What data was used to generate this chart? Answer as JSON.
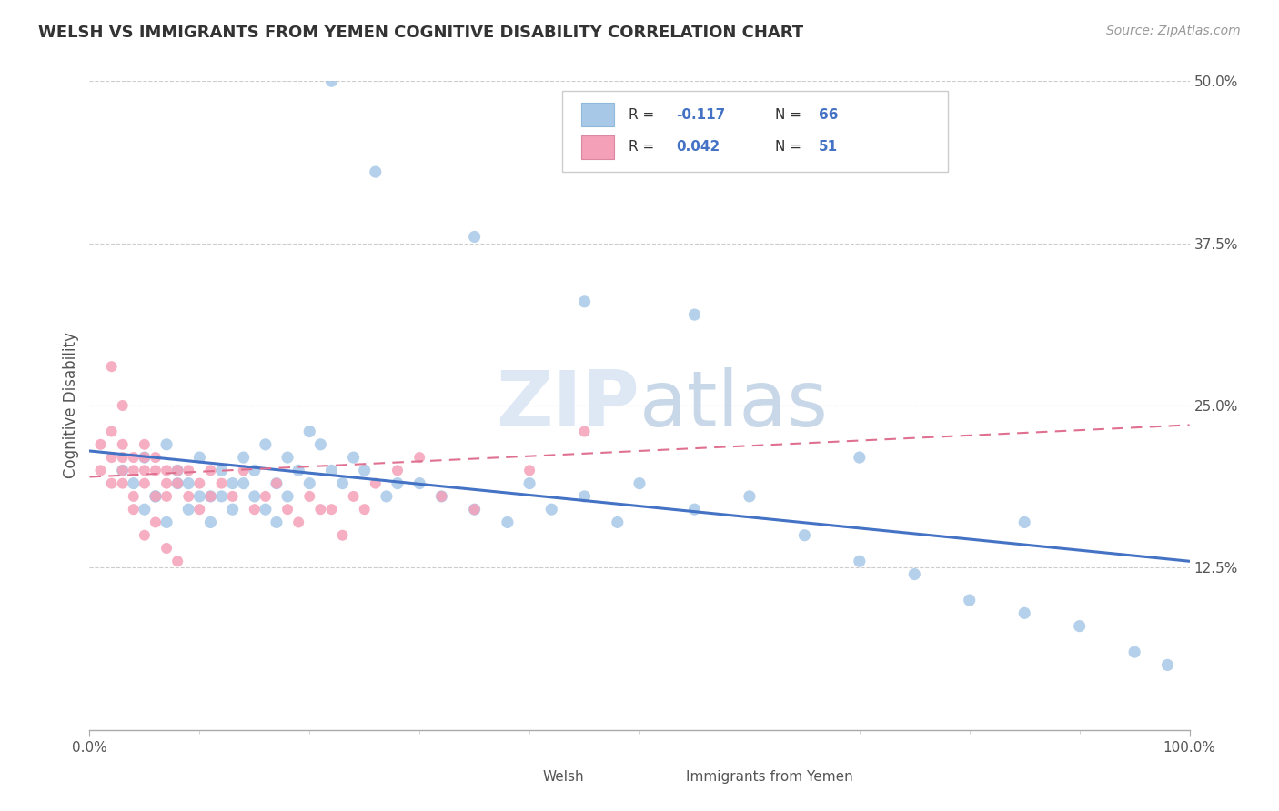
{
  "title": "WELSH VS IMMIGRANTS FROM YEMEN COGNITIVE DISABILITY CORRELATION CHART",
  "source_text": "Source: ZipAtlas.com",
  "ylabel": "Cognitive Disability",
  "xlim": [
    0,
    100
  ],
  "ylim": [
    0,
    50
  ],
  "x_tick_labels": [
    "0.0%",
    "100.0%"
  ],
  "y_ticks": [
    12.5,
    25.0,
    37.5,
    50.0
  ],
  "y_tick_labels": [
    "12.5%",
    "25.0%",
    "37.5%",
    "50.0%"
  ],
  "welsh_color": "#a8c8e8",
  "yemen_color": "#f4a0b8",
  "welsh_trend_color": "#4472c4",
  "yemen_trend_color": "#e07090",
  "watermark_zip": "ZIP",
  "watermark_atlas": "atlas",
  "welsh_x": [
    3,
    4,
    5,
    6,
    7,
    8,
    9,
    10,
    11,
    12,
    13,
    14,
    15,
    16,
    17,
    18,
    19,
    20,
    5,
    6,
    7,
    8,
    9,
    10,
    11,
    12,
    13,
    14,
    15,
    16,
    17,
    18,
    20,
    21,
    22,
    23,
    24,
    25,
    27,
    28,
    30,
    32,
    35,
    38,
    40,
    42,
    45,
    48,
    50,
    55,
    60,
    65,
    70,
    75,
    80,
    85,
    90,
    95,
    98,
    22,
    26,
    35,
    45,
    55,
    70,
    85
  ],
  "welsh_y": [
    20,
    19,
    21,
    18,
    22,
    20,
    19,
    21,
    18,
    20,
    19,
    21,
    20,
    22,
    19,
    21,
    20,
    23,
    17,
    18,
    16,
    19,
    17,
    18,
    16,
    18,
    17,
    19,
    18,
    17,
    16,
    18,
    19,
    22,
    20,
    19,
    21,
    20,
    18,
    19,
    19,
    18,
    17,
    16,
    19,
    17,
    18,
    16,
    19,
    17,
    18,
    15,
    13,
    12,
    10,
    9,
    8,
    6,
    5,
    50,
    43,
    38,
    33,
    32,
    21,
    16
  ],
  "yemen_x": [
    1,
    1,
    2,
    2,
    2,
    3,
    3,
    3,
    3,
    4,
    4,
    4,
    5,
    5,
    5,
    5,
    6,
    6,
    6,
    7,
    7,
    7,
    8,
    8,
    9,
    9,
    10,
    10,
    11,
    11,
    12,
    13,
    14,
    15,
    16,
    17,
    18,
    19,
    20,
    21,
    22,
    23,
    24,
    25,
    26,
    28,
    30,
    32,
    35,
    40,
    45,
    2,
    3,
    4,
    5,
    6,
    7,
    8
  ],
  "yemen_y": [
    20,
    22,
    21,
    19,
    23,
    20,
    22,
    21,
    19,
    20,
    18,
    21,
    22,
    20,
    21,
    19,
    20,
    18,
    21,
    19,
    20,
    18,
    20,
    19,
    18,
    20,
    19,
    17,
    18,
    20,
    19,
    18,
    20,
    17,
    18,
    19,
    17,
    16,
    18,
    17,
    17,
    15,
    18,
    17,
    19,
    20,
    21,
    18,
    17,
    20,
    23,
    28,
    25,
    17,
    15,
    16,
    14,
    13
  ],
  "welsh_trend_x0": 0,
  "welsh_trend_x1": 100,
  "welsh_trend_y0": 21.5,
  "welsh_trend_y1": 13.0,
  "yemen_trend_x0": 0,
  "yemen_trend_x1": 100,
  "yemen_trend_y0": 19.5,
  "yemen_trend_y1": 23.5
}
